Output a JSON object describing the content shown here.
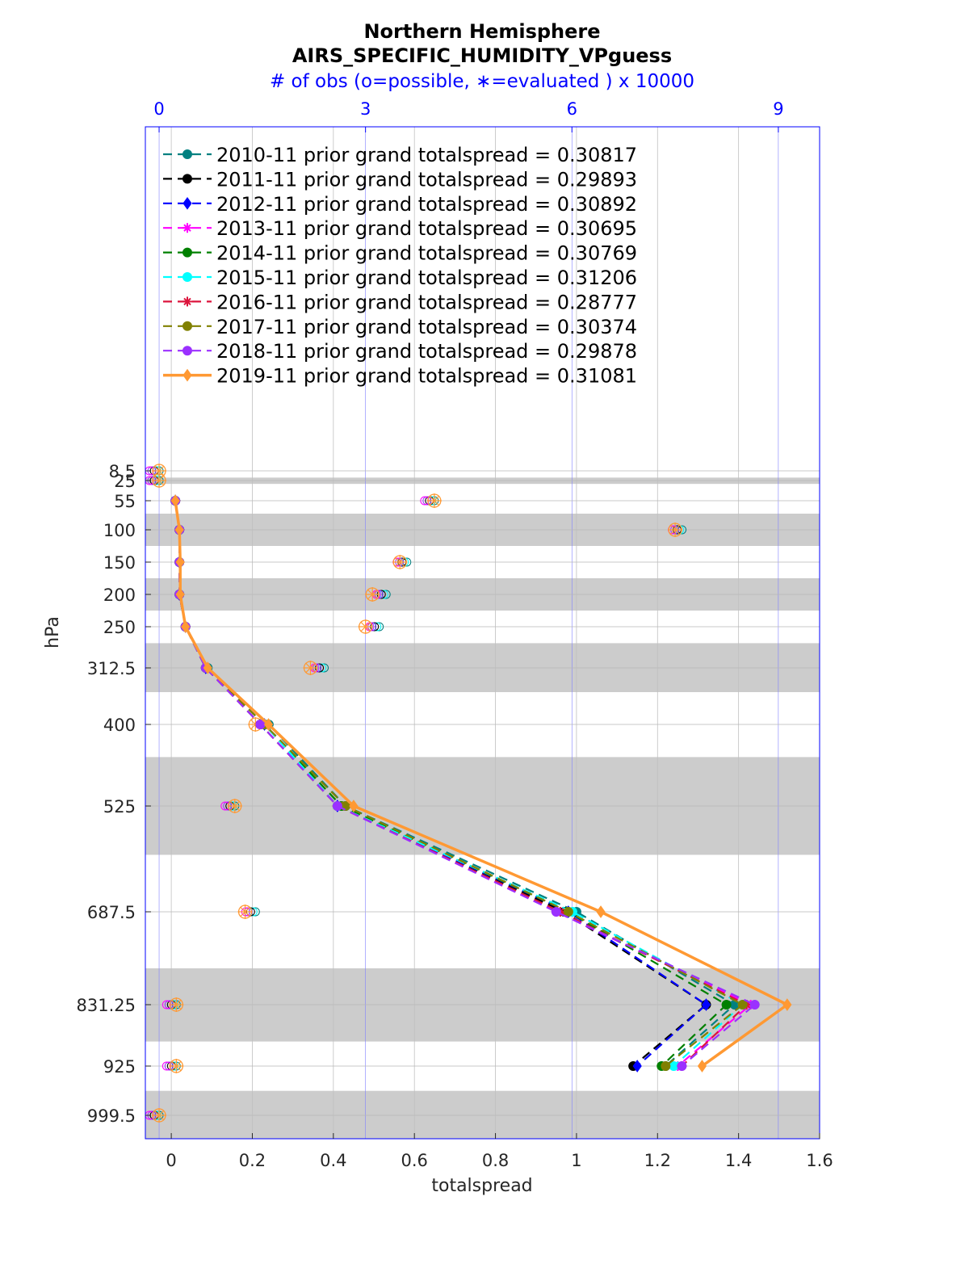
{
  "chart_data": {
    "type": "line",
    "title": "Northern Hemisphere",
    "subtitle": "AIRS_SPECIFIC_HUMIDITY_VPguess",
    "top_axis_label": "# of obs (o=possible, ∗=evaluated ) x 10000",
    "xlabel": "totalspread",
    "ylabel": "hPa",
    "xlim": [
      -0.064,
      1.6
    ],
    "top_xlim": [
      -0.2,
      9.6
    ],
    "x_ticks": [
      0,
      0.2,
      0.4,
      0.6,
      0.8,
      1,
      1.2,
      1.4,
      1.6
    ],
    "x_tick_labels": [
      "0",
      "0.2",
      "0.4",
      "0.6",
      "0.8",
      "1",
      "1.2",
      "1.4",
      "1.6"
    ],
    "top_ticks": [
      0,
      3,
      6,
      9
    ],
    "top_tick_labels": [
      "0",
      "3",
      "6",
      "9"
    ],
    "levels": [
      8.5,
      25,
      55,
      100,
      150,
      200,
      250,
      312.5,
      400,
      525,
      687.5,
      831.25,
      925,
      999.5
    ],
    "level_labels": [
      "8.5",
      "25",
      "55",
      "100",
      "150",
      "200",
      "250",
      "312.5",
      "400",
      "525",
      "687.5",
      "831.25",
      "925",
      "999.5"
    ],
    "shaded_bands": [
      [
        20,
        30
      ],
      [
        75,
        125
      ],
      [
        175,
        225
      ],
      [
        275,
        350
      ],
      [
        450,
        600
      ],
      [
        775,
        887.5
      ],
      [
        962.5,
        1037
      ]
    ],
    "grid": true,
    "legend_position": "top-left",
    "series": [
      {
        "name": "2010-11 prior grand totalspread = 0.30817",
        "color": "#008080",
        "style": "dashed",
        "marker": "circle",
        "levels": [
          55,
          100,
          150,
          200,
          250,
          312.5,
          400,
          525,
          687.5,
          831.25,
          925
        ],
        "values": [
          0.01,
          0.02,
          0.02,
          0.02,
          0.035,
          0.09,
          0.24,
          0.43,
          1.0,
          1.39,
          1.22
        ]
      },
      {
        "name": "2011-11 prior grand totalspread = 0.29893",
        "color": "#000000",
        "style": "dashed",
        "marker": "circle",
        "levels": [
          55,
          100,
          150,
          200,
          250,
          312.5,
          400,
          525,
          687.5,
          831.25,
          925
        ],
        "values": [
          0.01,
          0.02,
          0.02,
          0.02,
          0.035,
          0.085,
          0.22,
          0.41,
          0.97,
          1.32,
          1.14
        ]
      },
      {
        "name": "2012-11 prior grand totalspread = 0.30892",
        "color": "#0000ff",
        "style": "dashed",
        "marker": "diamond",
        "levels": [
          55,
          100,
          150,
          200,
          250,
          312.5,
          400,
          525,
          687.5,
          831.25,
          925
        ],
        "values": [
          0.01,
          0.02,
          0.02,
          0.02,
          0.035,
          0.085,
          0.23,
          0.41,
          0.98,
          1.32,
          1.15
        ]
      },
      {
        "name": "2013-11 prior grand totalspread = 0.30695",
        "color": "#ff00ff",
        "style": "dashed",
        "marker": "star",
        "levels": [
          55,
          100,
          150,
          200,
          250,
          312.5,
          400,
          525,
          687.5,
          831.25,
          925
        ],
        "values": [
          0.01,
          0.02,
          0.02,
          0.02,
          0.035,
          0.085,
          0.23,
          0.41,
          0.95,
          1.43,
          1.25
        ]
      },
      {
        "name": "2014-11 prior grand totalspread = 0.30769",
        "color": "#008000",
        "style": "dashed",
        "marker": "circle",
        "levels": [
          55,
          100,
          150,
          200,
          250,
          312.5,
          400,
          525,
          687.5,
          831.25,
          925
        ],
        "values": [
          0.01,
          0.02,
          0.02,
          0.02,
          0.035,
          0.085,
          0.23,
          0.42,
          0.98,
          1.37,
          1.21
        ]
      },
      {
        "name": "2015-11 prior grand totalspread = 0.31206",
        "color": "#00ffff",
        "style": "dashed",
        "marker": "circle",
        "levels": [
          55,
          100,
          150,
          200,
          250,
          312.5,
          400,
          525,
          687.5,
          831.25,
          925
        ],
        "values": [
          0.01,
          0.02,
          0.02,
          0.02,
          0.035,
          0.085,
          0.23,
          0.41,
          0.99,
          1.41,
          1.24
        ]
      },
      {
        "name": "2016-11 prior grand totalspread = 0.28777",
        "color": "#dc143c",
        "style": "dashed",
        "marker": "star",
        "levels": [
          55,
          100,
          150,
          200,
          250,
          312.5,
          400,
          525,
          687.5,
          831.25,
          925
        ],
        "values": [
          0.01,
          0.02,
          0.02,
          0.02,
          0.035,
          0.085,
          0.22,
          0.41,
          0.96,
          1.42,
          1.26
        ]
      },
      {
        "name": "2017-11 prior grand totalspread = 0.30374",
        "color": "#808000",
        "style": "dashed",
        "marker": "circle",
        "levels": [
          55,
          100,
          150,
          200,
          250,
          312.5,
          400,
          525,
          687.5,
          831.25,
          925
        ],
        "values": [
          0.01,
          0.02,
          0.02,
          0.02,
          0.035,
          0.085,
          0.23,
          0.43,
          0.98,
          1.41,
          1.22
        ]
      },
      {
        "name": "2018-11 prior grand totalspread = 0.29878",
        "color": "#9b30ff",
        "style": "dashed",
        "marker": "circle",
        "levels": [
          55,
          100,
          150,
          200,
          250,
          312.5,
          400,
          525,
          687.5,
          831.25,
          925
        ],
        "values": [
          0.01,
          0.02,
          0.02,
          0.02,
          0.035,
          0.085,
          0.22,
          0.41,
          0.95,
          1.44,
          1.26
        ]
      },
      {
        "name": "2019-11 prior grand totalspread = 0.31081",
        "color": "#ff9933",
        "style": "solid",
        "marker": "diamond",
        "levels": [
          55,
          100,
          150,
          200,
          250,
          312.5,
          400,
          525,
          687.5,
          831.25,
          925
        ],
        "values": [
          0.01,
          0.02,
          0.022,
          0.022,
          0.035,
          0.09,
          0.24,
          0.45,
          1.06,
          1.52,
          1.31
        ]
      }
    ],
    "obs_counts_x10000": {
      "possible_levels": [
        8.5,
        25,
        55,
        100,
        150,
        200,
        250,
        312.5,
        400,
        525,
        687.5,
        831.25,
        925,
        999.5
      ],
      "possible": [
        0.0,
        0.0,
        4.0,
        7.6,
        3.6,
        3.3,
        3.2,
        2.4,
        1.6,
        1.1,
        1.4,
        0.25,
        0.25,
        0.0
      ],
      "evaluated_2019": [
        0.0,
        0.0,
        4.0,
        7.5,
        3.5,
        3.1,
        3.0,
        2.2,
        1.4,
        1.1,
        1.25,
        0.25,
        0.25,
        0.0
      ]
    }
  }
}
